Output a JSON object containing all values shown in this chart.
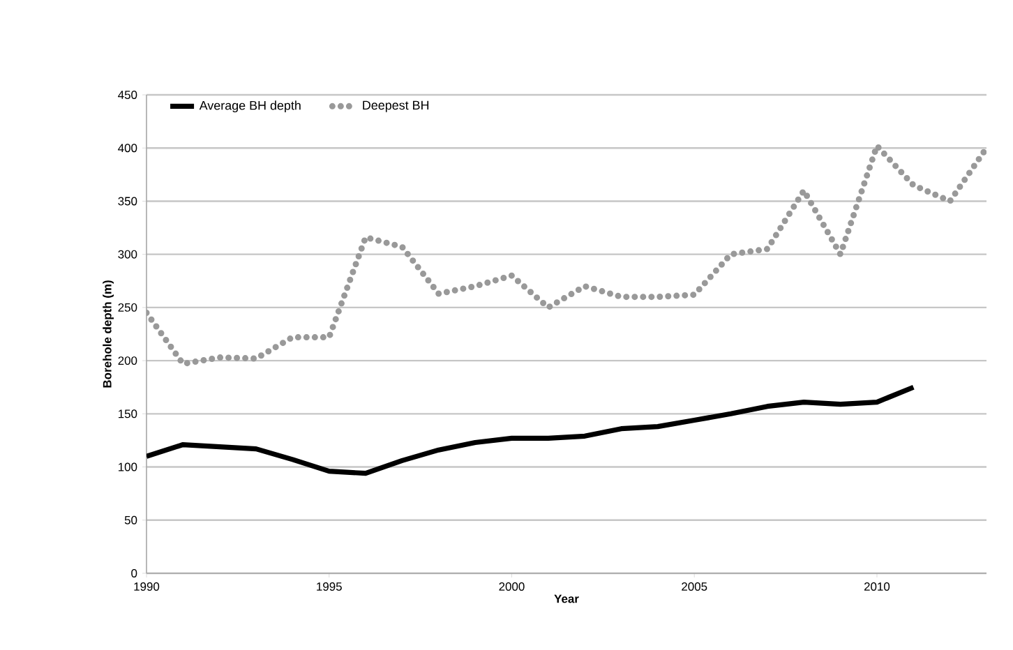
{
  "chart_data": {
    "type": "line",
    "xlabel": "Year",
    "ylabel": "Borehole depth (m)",
    "x": [
      1990,
      1991,
      1992,
      1993,
      1994,
      1995,
      1996,
      1997,
      1998,
      1999,
      2000,
      2001,
      2002,
      2003,
      2004,
      2005,
      2006,
      2007,
      2008,
      2009,
      2010,
      2011,
      2012,
      2013
    ],
    "series": [
      {
        "name": "Average BH depth",
        "color": "#000000",
        "line_style": "solid",
        "values": [
          110,
          121,
          119,
          117,
          107,
          96,
          94,
          106,
          116,
          123,
          127,
          127,
          129,
          136,
          138,
          144,
          150,
          157,
          161,
          159,
          161,
          175,
          null,
          null
        ]
      },
      {
        "name": "Deepest BH",
        "color": "#999999",
        "line_style": "dotted",
        "values": [
          245,
          197,
          203,
          202,
          222,
          222,
          316,
          307,
          263,
          270,
          280,
          250,
          270,
          260,
          260,
          262,
          300,
          305,
          360,
          300,
          402,
          365,
          350,
          400
        ]
      }
    ],
    "xlim": [
      1990,
      2013
    ],
    "xticks": [
      1990,
      1995,
      2000,
      2005,
      2010
    ],
    "ylim": [
      0,
      450
    ],
    "yticks": [
      0,
      50,
      100,
      150,
      200,
      250,
      300,
      350,
      400,
      450
    ],
    "grid": "y",
    "legend": "top left",
    "marker": "none"
  }
}
